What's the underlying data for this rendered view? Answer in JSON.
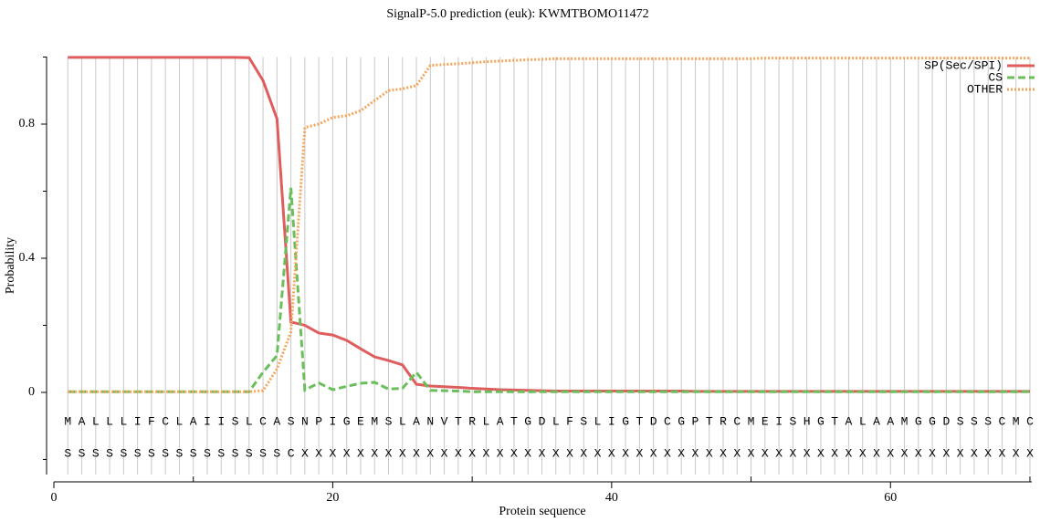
{
  "chart_data": {
    "type": "line",
    "title": "SignalP-5.0 prediction (euk):  KWMTBOMO11472",
    "xlabel": "Protein sequence",
    "ylabel": "Probability",
    "x": [
      1,
      2,
      3,
      4,
      5,
      6,
      7,
      8,
      9,
      10,
      11,
      12,
      13,
      14,
      15,
      16,
      17,
      18,
      19,
      20,
      21,
      22,
      23,
      24,
      25,
      26,
      27,
      28,
      29,
      30,
      31,
      32,
      33,
      34,
      35,
      36,
      37,
      38,
      39,
      40,
      41,
      42,
      43,
      44,
      45,
      46,
      47,
      48,
      49,
      50,
      51,
      52,
      53,
      54,
      55,
      56,
      57,
      58,
      59,
      60,
      61,
      62,
      63,
      64,
      65,
      66,
      67,
      68,
      69,
      70
    ],
    "sequence": [
      "M",
      "A",
      "L",
      "L",
      "L",
      "I",
      "F",
      "C",
      "L",
      "A",
      "I",
      "I",
      "S",
      "L",
      "C",
      "A",
      "S",
      "N",
      "P",
      "I",
      "G",
      "E",
      "M",
      "S",
      "L",
      "A",
      "N",
      "V",
      "T",
      "R",
      "L",
      "A",
      "T",
      "G",
      "D",
      "L",
      "F",
      "S",
      "L",
      "I",
      "G",
      "T",
      "D",
      "C",
      "G",
      "P",
      "T",
      "R",
      "C",
      "M",
      "E",
      "I",
      "S",
      "H",
      "G",
      "T",
      "A",
      "L",
      "A",
      "A",
      "M",
      "G",
      "G",
      "D",
      "S",
      "S",
      "S",
      "C",
      "M",
      "C"
    ],
    "labels": [
      "S",
      "S",
      "S",
      "S",
      "S",
      "S",
      "S",
      "S",
      "S",
      "S",
      "S",
      "S",
      "S",
      "S",
      "S",
      "S",
      "C",
      "X",
      "X",
      "X",
      "X",
      "X",
      "X",
      "X",
      "X",
      "X",
      "X",
      "X",
      "X",
      "X",
      "X",
      "X",
      "X",
      "X",
      "X",
      "X",
      "X",
      "X",
      "X",
      "X",
      "X",
      "X",
      "X",
      "X",
      "X",
      "X",
      "X",
      "X",
      "X",
      "X",
      "X",
      "X",
      "X",
      "X",
      "X",
      "X",
      "X",
      "X",
      "X",
      "X",
      "X",
      "X",
      "X",
      "X",
      "X",
      "X",
      "X",
      "X",
      "X",
      "X"
    ],
    "series": [
      {
        "name": "SP(Sec/SPI)",
        "color": "#e05d5d",
        "style": "solid",
        "values": [
          0.999,
          0.999,
          0.999,
          0.999,
          0.999,
          0.999,
          0.999,
          0.999,
          0.999,
          0.999,
          0.999,
          0.999,
          0.999,
          0.998,
          0.93,
          0.816,
          0.21,
          0.2,
          0.177,
          0.171,
          0.155,
          0.13,
          0.106,
          0.095,
          0.082,
          0.024,
          0.019,
          0.017,
          0.015,
          0.012,
          0.01,
          0.008,
          0.007,
          0.006,
          0.005,
          0.004,
          0.004,
          0.004,
          0.004,
          0.004,
          0.004,
          0.004,
          0.004,
          0.004,
          0.004,
          0.003,
          0.003,
          0.003,
          0.003,
          0.003,
          0.003,
          0.003,
          0.003,
          0.003,
          0.003,
          0.003,
          0.003,
          0.003,
          0.003,
          0.003,
          0.003,
          0.003,
          0.003,
          0.003,
          0.003,
          0.003,
          0.003,
          0.003,
          0.003,
          0.003
        ]
      },
      {
        "name": "CS",
        "color": "#6abf5a",
        "style": "dashed",
        "values": [
          0.002,
          0.002,
          0.002,
          0.002,
          0.002,
          0.002,
          0.002,
          0.002,
          0.002,
          0.002,
          0.002,
          0.002,
          0.002,
          0.002,
          0.06,
          0.11,
          0.61,
          0.007,
          0.028,
          0.008,
          0.018,
          0.027,
          0.03,
          0.01,
          0.012,
          0.06,
          0.006,
          0.005,
          0.004,
          0.002,
          0.002,
          0.002,
          0.002,
          0.002,
          0.002,
          0.002,
          0.002,
          0.002,
          0.002,
          0.002,
          0.002,
          0.002,
          0.002,
          0.002,
          0.002,
          0.002,
          0.002,
          0.002,
          0.002,
          0.002,
          0.002,
          0.002,
          0.002,
          0.002,
          0.002,
          0.002,
          0.002,
          0.002,
          0.002,
          0.002,
          0.002,
          0.002,
          0.002,
          0.002,
          0.002,
          0.002,
          0.002,
          0.002,
          0.002,
          0.002
        ]
      },
      {
        "name": "OTHER",
        "color": "#f5a55a",
        "style": "dotted",
        "values": [
          0.002,
          0.002,
          0.002,
          0.002,
          0.002,
          0.002,
          0.002,
          0.002,
          0.002,
          0.002,
          0.002,
          0.002,
          0.002,
          0.002,
          0.005,
          0.07,
          0.18,
          0.79,
          0.8,
          0.82,
          0.825,
          0.84,
          0.87,
          0.9,
          0.905,
          0.915,
          0.975,
          0.978,
          0.98,
          0.983,
          0.986,
          0.988,
          0.99,
          0.992,
          0.993,
          0.995,
          0.995,
          0.995,
          0.995,
          0.995,
          0.995,
          0.995,
          0.995,
          0.995,
          0.995,
          0.995,
          0.995,
          0.995,
          0.995,
          0.995,
          0.997,
          0.997,
          0.997,
          0.997,
          0.997,
          0.997,
          0.997,
          0.997,
          0.997,
          0.997,
          0.997,
          0.997,
          0.997,
          0.997,
          0.997,
          0.997,
          0.997,
          0.997,
          0.997,
          0.997
        ]
      }
    ],
    "xlim": [
      0,
      70.1
    ],
    "xticks": [
      0,
      20,
      40,
      60
    ],
    "xticks_minor": [
      10,
      30,
      50,
      70
    ],
    "ylim": [
      -0.245,
      1.0
    ],
    "yticks": [
      0,
      0.4,
      0.8
    ],
    "yticks_minor": [
      -0.2,
      0.2,
      0.6,
      1.0
    ],
    "grid": true,
    "legend": "upper right"
  }
}
